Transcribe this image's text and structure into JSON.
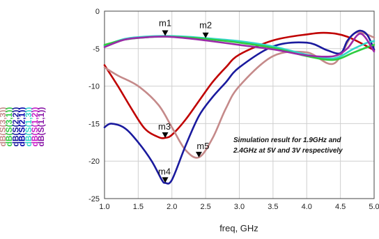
{
  "chart_data": {
    "type": "line",
    "xlabel": "freq, GHz",
    "xlim": [
      1.0,
      5.0
    ],
    "ylim": [
      -25,
      0
    ],
    "x_ticks": [
      "1.0",
      "1.5",
      "2.0",
      "2.5",
      "3.0",
      "3.5",
      "4.0",
      "4.5",
      "5.0"
    ],
    "y_ticks": [
      "0",
      "-5",
      "-10",
      "-15",
      "-20",
      "-25"
    ],
    "grid": true,
    "legend_position": "left-vertical",
    "legend": [
      {
        "label": "dB(S(3,3))",
        "color": "#c58a8a"
      },
      {
        "label": "dB(S(3,1))",
        "color": "#2ecc40"
      },
      {
        "label": "dB(S(2,2))",
        "color": "#1a1a9e"
      },
      {
        "label": "dB(S(2,1))",
        "color": "#0000aa"
      },
      {
        "label": "dB(S(1,3))",
        "color": "#33d6c9"
      },
      {
        "label": "dB(S(1,2))",
        "color": "#c81ec8"
      },
      {
        "label": "dB(S(1,1))",
        "color": "#8a1aa8"
      }
    ],
    "annotation": [
      "Simulation result for 1.9GHz and",
      "2.4GHz at 5V and 3V respectively"
    ],
    "series": [
      {
        "color": "#c00000",
        "x": [
          1.0,
          1.2,
          1.4,
          1.6,
          1.8,
          1.9,
          2.0,
          2.2,
          2.4,
          2.6,
          2.8,
          3.0,
          3.5,
          4.0,
          4.3,
          4.6,
          5.0
        ],
        "y": [
          -7.2,
          -10,
          -13,
          -15.7,
          -16.8,
          -16.9,
          -16.5,
          -14.5,
          -12,
          -9.5,
          -7.5,
          -5.8,
          -3.9,
          -3.1,
          -2.9,
          -3.4,
          -5.2
        ]
      },
      {
        "color": "#c58a8a",
        "x": [
          1.0,
          1.2,
          1.5,
          1.8,
          2.0,
          2.2,
          2.4,
          2.6,
          2.8,
          3.0,
          3.5,
          4.0,
          4.4,
          4.7,
          5.0
        ],
        "y": [
          -7.5,
          -8.6,
          -10,
          -12.5,
          -15.5,
          -18.5,
          -19.5,
          -17,
          -13,
          -10,
          -6,
          -5.5,
          -7,
          -3,
          -3.5
        ]
      },
      {
        "color": "#1a1a9e",
        "x": [
          1.0,
          1.1,
          1.3,
          1.5,
          1.7,
          1.85,
          1.9,
          2.0,
          2.2,
          2.4,
          2.6,
          2.8,
          3.0,
          3.5,
          4.0,
          4.3,
          4.5,
          4.6,
          4.7,
          4.8,
          4.9,
          5.0
        ],
        "y": [
          -15.5,
          -15,
          -15.6,
          -17.5,
          -20,
          -22.5,
          -22.9,
          -22.5,
          -18,
          -14,
          -11.5,
          -9.5,
          -7.5,
          -4.7,
          -4.2,
          -5.2,
          -5.6,
          -4,
          -3,
          -2.6,
          -3.2,
          -5.1
        ]
      },
      {
        "color": "#33d6c9",
        "x": [
          1.0,
          1.3,
          1.6,
          1.9,
          2.2,
          2.5,
          3.0,
          3.5,
          4.0,
          4.4,
          4.7,
          4.9,
          5.0
        ],
        "y": [
          -4.6,
          -3.7,
          -3.4,
          -3.3,
          -3.4,
          -3.6,
          -4.0,
          -4.7,
          -5.8,
          -6.3,
          -5.0,
          -4.2,
          -4.0
        ]
      },
      {
        "color": "#2ecc40",
        "x": [
          1.0,
          1.3,
          1.6,
          1.9,
          2.2,
          2.5,
          3.0,
          3.5,
          4.0,
          4.4,
          4.7,
          4.9,
          5.0
        ],
        "y": [
          -4.5,
          -3.8,
          -3.5,
          -3.4,
          -3.5,
          -3.7,
          -4.2,
          -4.9,
          -6.0,
          -6.5,
          -5.5,
          -4.8,
          -4.5
        ]
      },
      {
        "color": "#9b2aa8",
        "x": [
          1.0,
          1.3,
          1.6,
          1.9,
          2.2,
          2.5,
          3.0,
          3.5,
          4.0,
          4.4,
          4.6,
          4.8,
          5.0
        ],
        "y": [
          -4.8,
          -3.8,
          -3.5,
          -3.4,
          -3.6,
          -3.9,
          -4.5,
          -5.1,
          -5.9,
          -6.0,
          -5.0,
          -3.0,
          -5.4
        ]
      }
    ],
    "markers": [
      {
        "label": "m1",
        "x": 1.9,
        "y": -3.3,
        "label_dx": 0,
        "label_dy": -14
      },
      {
        "label": "m2",
        "x": 2.5,
        "y": -3.6,
        "label_dx": 0,
        "label_dy": -14
      },
      {
        "label": "m3",
        "x": 1.9,
        "y": -16.9,
        "label_dx": -1,
        "label_dy": -12
      },
      {
        "label": "m4",
        "x": 1.9,
        "y": -22.9,
        "label_dx": -1,
        "label_dy": -12
      },
      {
        "label": "m5",
        "x": 2.4,
        "y": -19.5,
        "label_dx": 6,
        "label_dy": -12
      }
    ]
  }
}
